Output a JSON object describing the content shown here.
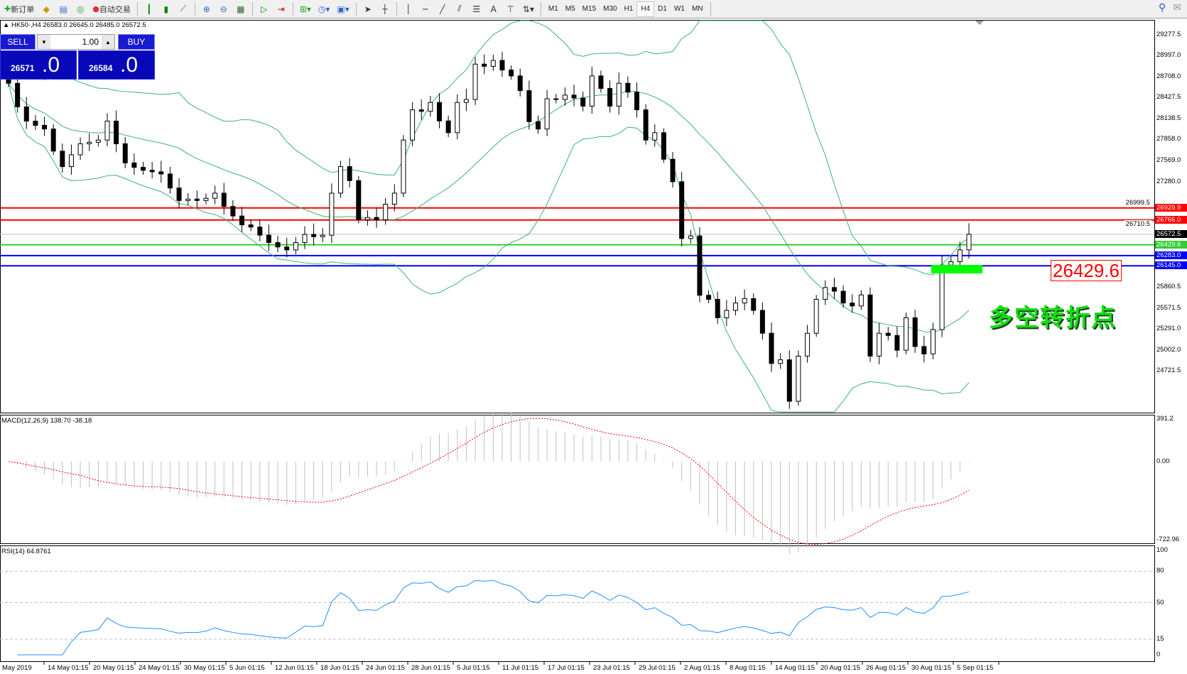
{
  "toolbar": {
    "new_order": "新订单",
    "auto_trading": "自动交易",
    "icons": [
      "new-order-icon",
      "strategy-tester-icon",
      "market-watch-icon",
      "signals-icon",
      "auto-trading-icon",
      "bar-chart-icon",
      "candlestick-icon",
      "line-chart-icon",
      "zoom-in-icon",
      "zoom-out-icon",
      "tile-windows-icon",
      "autoscroll-icon",
      "chart-shift-icon",
      "indicators-icon",
      "periods-icon",
      "templates-icon",
      "cursor-icon",
      "crosshair-icon",
      "vertical-line-icon",
      "horizontal-line-icon",
      "trendline-icon",
      "equidistant-channel-icon",
      "fibonacci-icon",
      "text-icon",
      "text-label-icon",
      "arrows-icon"
    ],
    "text_tool": "A",
    "timeframes": [
      "M1",
      "M5",
      "M15",
      "M30",
      "H1",
      "H4",
      "D1",
      "W1",
      "MN"
    ],
    "active_timeframe": "H4"
  },
  "chart": {
    "info": "HK50-,H4  26583.0 26645.0 26485.0 26572.5",
    "one_click": {
      "sell_label": "SELL",
      "buy_label": "BUY",
      "lot": "1.00",
      "sell_price": "26571",
      "sell_big": ".0",
      "buy_price": "26584",
      "buy_big": ".0"
    },
    "annotation": "多空转折点",
    "box_label": "26429.6"
  },
  "chart_data": {
    "type": "candlestick",
    "symbol": "HK50-",
    "timeframe": "H4",
    "ylim": [
      24143,
      29480
    ],
    "price_ticks": [
      "29277.5",
      "28997.0",
      "28708.0",
      "28427.5",
      "28138.5",
      "27858.0",
      "27569.0",
      "27280.0",
      "26999.5",
      "26710.5",
      "25860.5",
      "25571.5",
      "25291.0",
      "25002.0",
      "24721.5"
    ],
    "levels": [
      {
        "price": 26929.9,
        "label": "26929.9",
        "color": "#ff0000"
      },
      {
        "price": 26766.0,
        "label": "26766.0",
        "color": "#ff0000"
      },
      {
        "price": 26572.5,
        "label": "26572.5",
        "color": "#000000",
        "line": "#c0c0c0"
      },
      {
        "price": 26429.6,
        "label": "26429.6",
        "color": "#33cc33"
      },
      {
        "price": 26283.0,
        "label": "26283.0",
        "color": "#0000ff"
      },
      {
        "price": 26145.0,
        "label": "26145.0",
        "color": "#0000ff"
      }
    ],
    "close": [
      28620,
      28300,
      28107,
      28050,
      28000,
      27700,
      27490,
      27650,
      27800,
      27820,
      27850,
      28107,
      27800,
      27540,
      27480,
      27440,
      27420,
      27390,
      27200,
      27030,
      27050,
      27030,
      27060,
      27130,
      26950,
      26820,
      26700,
      26670,
      26560,
      26460,
      26400,
      26360,
      26460,
      26570,
      26540,
      26560,
      27130,
      27490,
      27300,
      26770,
      26800,
      26770,
      26980,
      27130,
      27850,
      28260,
      28240,
      28360,
      28110,
      27950,
      28360,
      28400,
      28880,
      28850,
      28930,
      28800,
      28720,
      28520,
      28100,
      28000,
      28410,
      28400,
      28460,
      28420,
      28310,
      28720,
      28550,
      28310,
      28620,
      28500,
      28260,
      27850,
      27950,
      27590,
      27285,
      26515,
      26550,
      25745,
      25690,
      25440,
      25540,
      25640,
      25700,
      25540,
      25230,
      24820,
      24870,
      24307,
      24920,
      25230,
      25690,
      25850,
      25800,
      25640,
      25600,
      25750,
      24920,
      25230,
      25200,
      25000,
      25440,
      25050,
      24950,
      25280,
      26155,
      26200,
      26360,
      26572.5
    ],
    "bollinger": {
      "period": 20,
      "deviation": 2,
      "color": "#3cb371"
    },
    "macd": {
      "label": "MACD(12,26,9) 138.70 -38.18",
      "ticks": [
        "391.2",
        "0.00",
        "-722.96"
      ],
      "ylim": [
        -722.96,
        391.2
      ],
      "histogram_color": "#c0c0c0",
      "signal_color": "#ff0000"
    },
    "rsi": {
      "label": "RSI(14) 64.8761",
      "ticks": [
        "100",
        "80",
        "50",
        "15",
        "0"
      ],
      "levels": [
        80,
        50,
        15
      ],
      "color": "#1e90ff"
    },
    "x_ticks": [
      "May 2019",
      "14 May 01:15",
      "20 May 01:15",
      "24 May 01:15",
      "30 May 01:15",
      "5 Jun 01:15",
      "12 Jun 01:15",
      "18 Jun 01:15",
      "24 Jun 01:15",
      "28 Jun 01:15",
      "5 Jul 01:15",
      "11 Jul 01:15",
      "17 Jul 01:15",
      "23 Jul 01:15",
      "29 Jul 01:15",
      "2 Aug 01:15",
      "8 Aug 01:15",
      "14 Aug 01:15",
      "20 Aug 01:15",
      "26 Aug 01:15",
      "30 Aug 01:15",
      "5 Sep 01:15"
    ]
  }
}
